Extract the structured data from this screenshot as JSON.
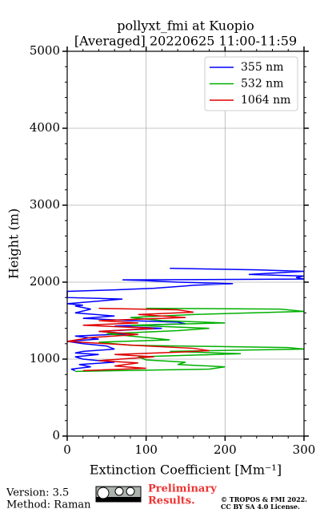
{
  "chart_data": {
    "type": "profile",
    "title": "pollyxt_fmi at Kuopio",
    "subtitle": "[Averaged] 20220625 11:00-11:59",
    "xlabel": "Extinction Coefficient [Mm⁻¹]",
    "ylabel": "Height (m)",
    "xlim": [
      0,
      300
    ],
    "ylim": [
      0,
      5000
    ],
    "xticks": [
      0,
      100,
      200,
      300
    ],
    "yticks": [
      0,
      1000,
      2000,
      3000,
      4000,
      5000
    ],
    "xminor": [
      20,
      40,
      60,
      80,
      120,
      140,
      160,
      180,
      220,
      240,
      260,
      280
    ],
    "yminor": [
      200,
      400,
      600,
      800,
      1200,
      1400,
      1600,
      1800,
      2200,
      2400,
      2600,
      2800,
      3200,
      3400,
      3600,
      3800,
      4200,
      4400,
      4600,
      4800
    ],
    "grid": true,
    "legend": "upper right",
    "series": [
      {
        "name": "355 nm",
        "color": "#0000ff",
        "x": [
          10,
          5,
          30,
          15,
          60,
          20,
          10,
          40,
          10,
          20,
          60,
          50,
          20,
          0,
          40,
          10,
          80,
          40,
          120,
          60,
          150,
          140,
          80,
          20,
          60,
          10,
          30,
          10,
          20,
          0,
          70,
          0,
          0,
          60,
          110,
          150,
          160,
          210,
          140,
          100,
          70,
          300,
          290,
          300,
          230,
          300,
          240,
          130
        ],
        "y": [
          850,
          870,
          900,
          930,
          960,
          1000,
          1030,
          1060,
          1080,
          1100,
          1130,
          1170,
          1200,
          1230,
          1260,
          1300,
          1330,
          1360,
          1400,
          1430,
          1460,
          1480,
          1500,
          1530,
          1560,
          1600,
          1650,
          1690,
          1700,
          1720,
          1780,
          1800,
          1880,
          1900,
          1920,
          1950,
          1960,
          1980,
          2000,
          2020,
          2030,
          2040,
          2060,
          2080,
          2100,
          2140,
          2160,
          2180
        ]
      },
      {
        "name": "532 nm",
        "color": "#00b000",
        "x": [
          10,
          180,
          200,
          140,
          150,
          100,
          90,
          220,
          130,
          300,
          280,
          80,
          40,
          130,
          90,
          50,
          140,
          180,
          80,
          200,
          120,
          80,
          160,
          300,
          270,
          100
        ],
        "y": [
          840,
          870,
          900,
          930,
          960,
          990,
          1030,
          1070,
          1100,
          1130,
          1150,
          1180,
          1220,
          1250,
          1290,
          1330,
          1370,
          1400,
          1440,
          1470,
          1500,
          1540,
          1580,
          1620,
          1650,
          1660
        ]
      },
      {
        "name": "1064 nm",
        "color": "#e00000",
        "x": [
          20,
          100,
          60,
          90,
          40,
          110,
          60,
          140,
          180,
          160,
          100,
          50,
          0,
          30,
          90,
          40,
          110,
          20,
          90,
          40,
          150,
          90,
          160,
          140,
          40
        ],
        "y": [
          850,
          880,
          910,
          950,
          980,
          1030,
          1060,
          1090,
          1110,
          1140,
          1170,
          1200,
          1230,
          1280,
          1320,
          1360,
          1400,
          1440,
          1470,
          1500,
          1540,
          1580,
          1610,
          1640,
          1660
        ]
      }
    ]
  },
  "footer": {
    "version": "Version: 3.5",
    "method": "Method: Raman",
    "preliminary": [
      "Preliminary",
      "Results."
    ],
    "copyright": [
      "© TROPOS & FMI 2022.",
      "CC BY SA 4.0 License."
    ]
  }
}
